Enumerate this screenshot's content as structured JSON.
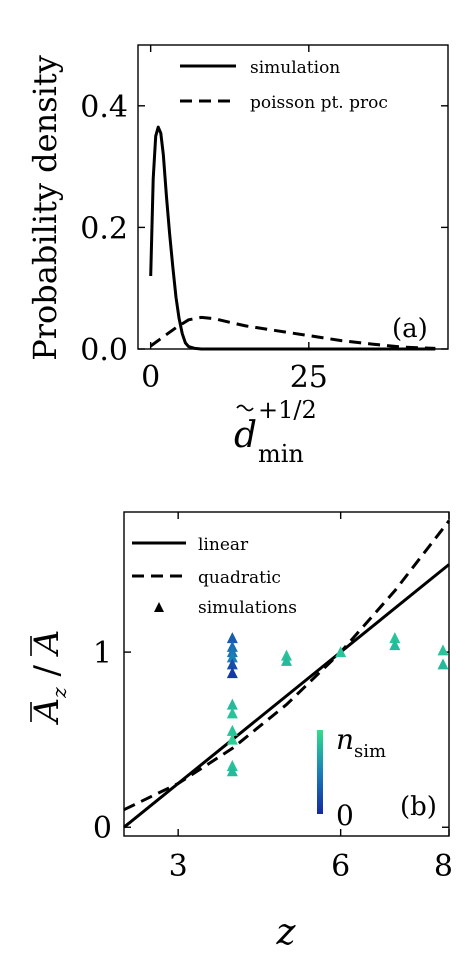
{
  "chart_data": [
    {
      "type": "line",
      "panel_label": "(a)",
      "ylabel": "Probability density",
      "xlabel_base": "d",
      "xlabel_exp": "+1/2",
      "xlabel_sub": "min",
      "xlim": [
        -2,
        47
      ],
      "ylim": [
        0,
        0.5
      ],
      "xticks": [
        0,
        25
      ],
      "yticks": [
        0.0,
        0.2,
        0.4
      ],
      "ytick_labels": [
        "0.0",
        "0.2",
        "0.4"
      ],
      "legend_position": "top-right",
      "series": [
        {
          "name": "simulation",
          "style": "solid",
          "x": [
            0.0,
            0.4,
            0.8,
            1.2,
            1.6,
            2.0,
            2.5,
            3.0,
            3.5,
            4.0,
            4.5,
            5.0,
            5.5,
            6.0,
            7.0,
            8.0,
            10.0,
            15.0,
            25.0,
            45.0
          ],
          "y": [
            0.12,
            0.28,
            0.35,
            0.365,
            0.355,
            0.32,
            0.25,
            0.19,
            0.135,
            0.085,
            0.05,
            0.025,
            0.01,
            0.004,
            0.001,
            0.0,
            0.0,
            0.0,
            0.0,
            0.0
          ]
        },
        {
          "name": "poisson pt. proc",
          "style": "dashed",
          "x": [
            0.0,
            2.0,
            4.0,
            6.0,
            8.0,
            10.0,
            12.0,
            15.0,
            20.0,
            25.0,
            30.0,
            35.0,
            40.0,
            45.0
          ],
          "y": [
            0.005,
            0.02,
            0.035,
            0.048,
            0.052,
            0.05,
            0.045,
            0.038,
            0.03,
            0.022,
            0.014,
            0.008,
            0.003,
            0.001
          ]
        }
      ]
    },
    {
      "type": "scatter",
      "panel_label": "(b)",
      "ylabel": "Ā_z / Ā",
      "xlabel": "z",
      "xlim": [
        2,
        8
      ],
      "ylim": [
        -0.05,
        1.8
      ],
      "xticks": [
        3,
        6,
        8
      ],
      "yticks": [
        0,
        1
      ],
      "legend_position": "top-left",
      "colorbar": {
        "label": "n_sim",
        "min_label": "0"
      },
      "series": [
        {
          "name": "linear",
          "style": "solid",
          "x": [
            2.0,
            8.0
          ],
          "y": [
            0.0,
            1.5
          ]
        },
        {
          "name": "quadratic",
          "style": "dashed",
          "x": [
            2.0,
            3.0,
            4.0,
            5.0,
            6.0,
            7.0,
            8.0
          ],
          "y": [
            0.1,
            0.25,
            0.45,
            0.7,
            1.0,
            1.35,
            1.75
          ]
        },
        {
          "name": "simulations",
          "style": "marker",
          "points": [
            {
              "x": 4,
              "y": 1.08,
              "n": 0.3
            },
            {
              "x": 4,
              "y": 1.03,
              "n": 0.4
            },
            {
              "x": 4,
              "y": 1.0,
              "n": 0.45
            },
            {
              "x": 4,
              "y": 0.97,
              "n": 0.5
            },
            {
              "x": 4,
              "y": 0.93,
              "n": 0.2
            },
            {
              "x": 4,
              "y": 0.88,
              "n": 0.1
            },
            {
              "x": 4,
              "y": 0.7,
              "n": 0.8
            },
            {
              "x": 4,
              "y": 0.65,
              "n": 0.85
            },
            {
              "x": 4,
              "y": 0.55,
              "n": 0.85
            },
            {
              "x": 4,
              "y": 0.5,
              "n": 0.9
            },
            {
              "x": 4,
              "y": 0.35,
              "n": 0.85
            },
            {
              "x": 4,
              "y": 0.32,
              "n": 0.8
            },
            {
              "x": 5,
              "y": 0.98,
              "n": 0.85
            },
            {
              "x": 5,
              "y": 0.95,
              "n": 0.8
            },
            {
              "x": 6,
              "y": 1.0,
              "n": 0.85
            },
            {
              "x": 7,
              "y": 1.08,
              "n": 0.85
            },
            {
              "x": 7,
              "y": 1.04,
              "n": 0.8
            },
            {
              "x": 8,
              "y": 1.01,
              "n": 0.85
            },
            {
              "x": 8,
              "y": 0.93,
              "n": 0.8
            }
          ]
        }
      ]
    }
  ]
}
